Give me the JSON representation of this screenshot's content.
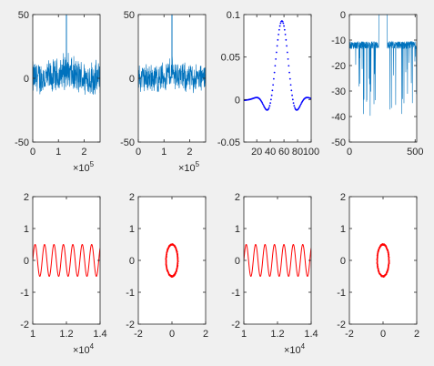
{
  "figure": {
    "background": "#f0f0f0",
    "axes_color": "#262626"
  },
  "chart_data": [
    {
      "type": "line",
      "title": "",
      "xlabel": "",
      "ylabel": "",
      "xlim": [
        0,
        262144
      ],
      "ylim": [
        -50,
        50
      ],
      "xticks": [
        0,
        100000,
        200000
      ],
      "xticklabels": [
        "0",
        "1",
        "2"
      ],
      "xexponent": "5",
      "yticks": [
        -50,
        0,
        50
      ],
      "yticklabels": [
        "-50",
        "0",
        "50"
      ],
      "series": [
        {
          "color": "#0072bd",
          "style": "spectrum",
          "noise_center": 0,
          "noise_spread": 12,
          "peak_x": 131072,
          "peak_y": 50,
          "hump_height": 20
        }
      ]
    },
    {
      "type": "line",
      "title": "",
      "xlabel": "",
      "ylabel": "",
      "xlim": [
        0,
        262144
      ],
      "ylim": [
        -50,
        50
      ],
      "xticks": [
        0,
        100000,
        200000
      ],
      "xticklabels": [
        "0",
        "1",
        "2"
      ],
      "xexponent": "5",
      "yticks": [
        -50,
        0,
        50
      ],
      "yticklabels": [
        "-50",
        "0",
        "50"
      ],
      "series": [
        {
          "color": "#0072bd",
          "style": "spectrum",
          "noise_center": 0,
          "noise_spread": 10,
          "peak_x": 131072,
          "peak_y": 50,
          "hump_height": 16
        }
      ]
    },
    {
      "type": "scatter",
      "title": "",
      "xlabel": "",
      "ylabel": "",
      "xlim": [
        1,
        100
      ],
      "ylim": [
        -0.05,
        0.1
      ],
      "xticks": [
        20,
        40,
        60,
        80,
        100
      ],
      "xticklabels": [
        "20",
        "40",
        "60",
        "80",
        "100"
      ],
      "yticks": [
        -0.05,
        0,
        0.05,
        0.1
      ],
      "yticklabels": [
        "-0.05",
        "0",
        "0.05",
        "0.1"
      ],
      "series": [
        {
          "color": "#0000ff",
          "style": "sinc",
          "center": 57,
          "period": 16,
          "peak": 0.0925
        }
      ]
    },
    {
      "type": "line",
      "title": "",
      "xlabel": "",
      "ylabel": "",
      "xlim": [
        0,
        512
      ],
      "ylim": [
        -50,
        0
      ],
      "xticks": [
        0,
        500
      ],
      "xticklabels": [
        "0",
        "500"
      ],
      "yticks": [
        -50,
        -40,
        -30,
        -20,
        -10,
        0
      ],
      "yticklabels": [
        "-50",
        "-40",
        "-30",
        "-20",
        "-10",
        "0"
      ],
      "series": [
        {
          "color": "#0072bd",
          "style": "filter",
          "passband": [
            224,
            288
          ],
          "stopband_level": -12,
          "spike_min": -40
        }
      ]
    },
    {
      "type": "line",
      "title": "",
      "xlabel": "",
      "ylabel": "",
      "xlim": [
        10000,
        14000
      ],
      "ylim": [
        -2,
        2
      ],
      "xticks": [
        10000,
        12000,
        14000
      ],
      "xticklabels": [
        "1",
        "1.2",
        "1.4"
      ],
      "xexponent": "4",
      "yticks": [
        -2,
        -1,
        0,
        1,
        2
      ],
      "yticklabels": [
        "-2",
        "-1",
        "0",
        "1",
        "2"
      ],
      "series": [
        {
          "color": "#ff0000",
          "style": "sine",
          "amplitude": 0.5,
          "period": 560,
          "phase": 0
        }
      ]
    },
    {
      "type": "scatter",
      "title": "",
      "xlabel": "",
      "ylabel": "",
      "xlim": [
        -2,
        2
      ],
      "ylim": [
        -2,
        2
      ],
      "xticks": [
        -2,
        0,
        2
      ],
      "xticklabels": [
        "-2",
        "0",
        "2"
      ],
      "yticks": [
        -2,
        -1,
        0,
        1,
        2
      ],
      "yticklabels": [
        "-2",
        "-1",
        "0",
        "1",
        "2"
      ],
      "series": [
        {
          "color": "#ff0000",
          "style": "ellipse",
          "cx": 0,
          "cy": 0,
          "rx": 0.35,
          "ry": 0.5
        }
      ]
    },
    {
      "type": "line",
      "title": "",
      "xlabel": "",
      "ylabel": "",
      "xlim": [
        10000,
        14000
      ],
      "ylim": [
        -2,
        2
      ],
      "xticks": [
        10000,
        12000,
        14000
      ],
      "xticklabels": [
        "1",
        "1.2",
        "1.4"
      ],
      "xexponent": "4",
      "yticks": [
        -2,
        -1,
        0,
        1,
        2
      ],
      "yticklabels": [
        "-2",
        "-1",
        "0",
        "1",
        "2"
      ],
      "series": [
        {
          "color": "#ff0000",
          "style": "sine",
          "amplitude": 0.5,
          "period": 560,
          "phase": 0
        }
      ]
    },
    {
      "type": "scatter",
      "title": "",
      "xlabel": "",
      "ylabel": "",
      "xlim": [
        -2,
        2
      ],
      "ylim": [
        -2,
        2
      ],
      "xticks": [
        -2,
        0,
        2
      ],
      "xticklabels": [
        "-2",
        "0",
        "2"
      ],
      "yticks": [
        -2,
        -1,
        0,
        1,
        2
      ],
      "yticklabels": [
        "-2",
        "-1",
        "0",
        "1",
        "2"
      ],
      "series": [
        {
          "color": "#ff0000",
          "style": "ellipse",
          "cx": 0,
          "cy": 0,
          "rx": 0.35,
          "ry": 0.5
        }
      ]
    }
  ]
}
